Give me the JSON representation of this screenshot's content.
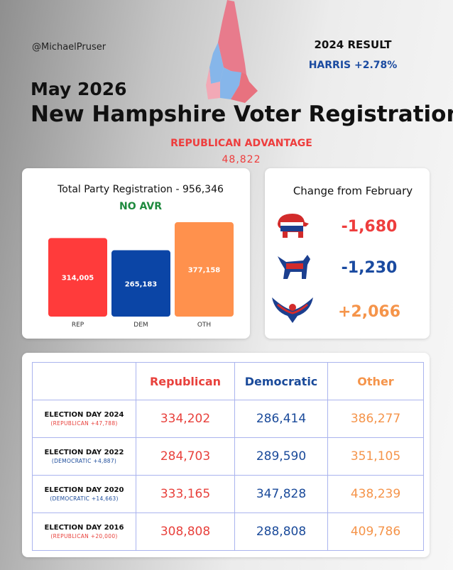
{
  "header": {
    "handle": "@MichaelPruser",
    "result_label": "2024 RESULT",
    "result_value": "HARRIS +2.78%",
    "date": "May 2026",
    "title": "New Hampshire Voter Registration",
    "advantage_label": "REPUBLICAN ADVANTAGE",
    "advantage_value": "48,822"
  },
  "chart_data": {
    "type": "bar",
    "title": "Total Party Registration - 956,346",
    "subtitle": "NO AVR",
    "categories": [
      "REP",
      "DEM",
      "OTH"
    ],
    "values": [
      314005,
      265183,
      377158
    ],
    "value_labels": [
      "314,005",
      "265,183",
      "377,158"
    ],
    "colors": [
      "#ff3b3b",
      "#0b45a6",
      "#ff914d"
    ],
    "ylim": [
      0,
      400000
    ]
  },
  "changes": {
    "title": "Change from February",
    "items": [
      {
        "value": "-1,680"
      },
      {
        "value": "-1,230"
      },
      {
        "value": "+2,066"
      }
    ]
  },
  "table": {
    "headers": [
      "Republican",
      "Democratic",
      "Other"
    ],
    "rows": [
      {
        "label": "ELECTION DAY 2024",
        "note": "(REPUBLICAN +47,788)",
        "cells": [
          "334,202",
          "286,414",
          "386,277"
        ]
      },
      {
        "label": "ELECTION DAY 2022",
        "note": "(DEMOCRATIC +4,887)",
        "cells": [
          "284,703",
          "289,590",
          "351,105"
        ]
      },
      {
        "label": "ELECTION DAY 2020",
        "note": "(DEMOCRATIC +14,663)",
        "cells": [
          "333,165",
          "347,828",
          "438,239"
        ]
      },
      {
        "label": "ELECTION DAY 2016",
        "note": "(REPUBLICAN +20,000)",
        "cells": [
          "308,808",
          "288,808",
          "409,786"
        ]
      }
    ]
  }
}
